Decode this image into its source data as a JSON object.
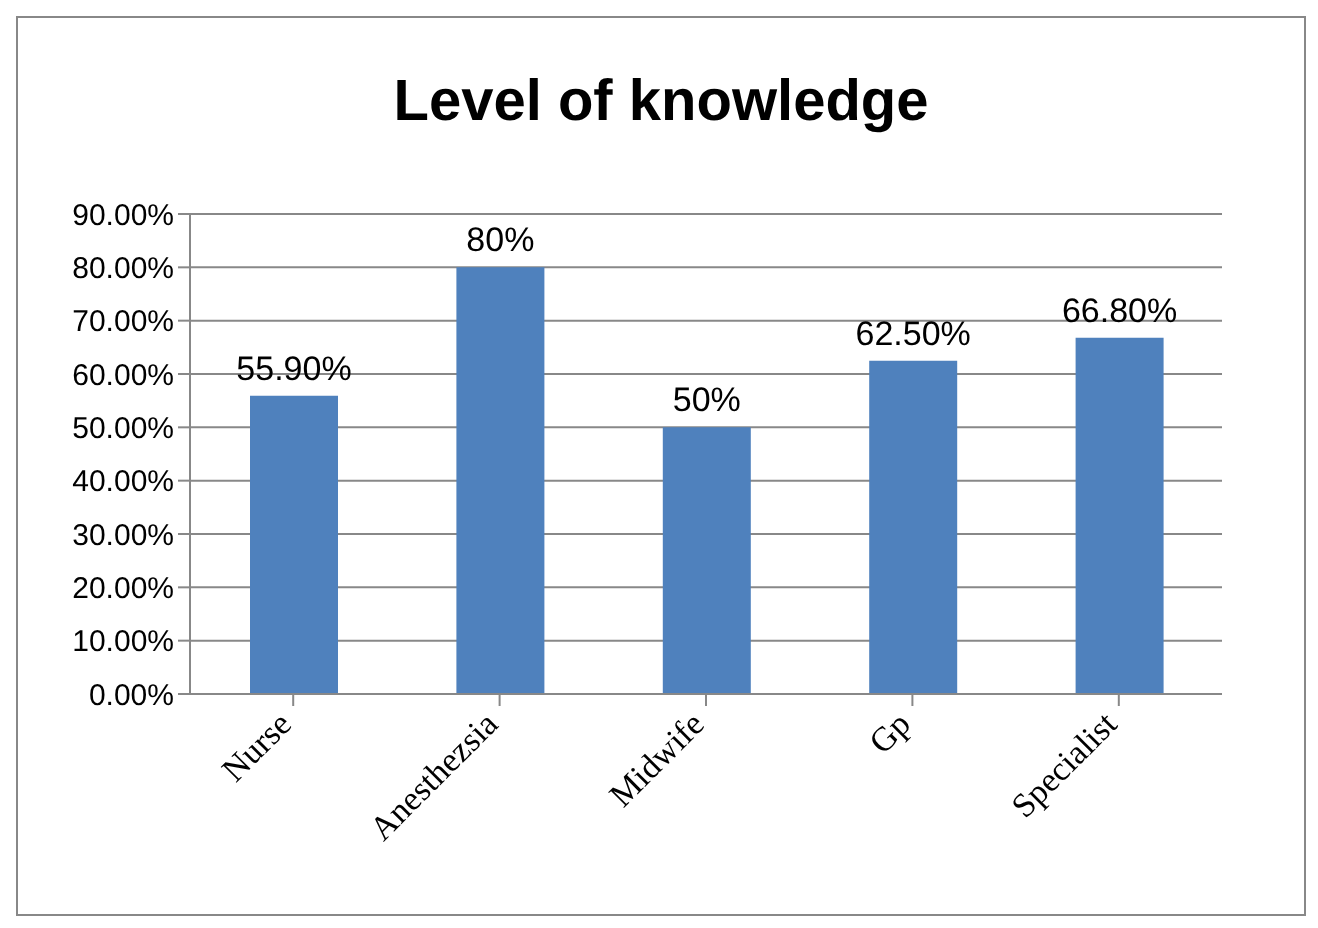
{
  "chart_data": {
    "type": "bar",
    "title": "Level of knowledge",
    "categories": [
      "Nurse",
      "Anesthezsia",
      "Midwife",
      "Gp",
      "Specialist"
    ],
    "values": [
      55.9,
      80,
      50,
      62.5,
      66.8
    ],
    "value_labels": [
      "55.90%",
      "80%",
      "50%",
      "62.50%",
      "66.80%"
    ],
    "color": "#4f81bd",
    "ylim": [
      0,
      90
    ],
    "yticks": [
      {
        "value": 0,
        "label": "0.00%"
      },
      {
        "value": 10,
        "label": "10.00%"
      },
      {
        "value": 20,
        "label": "20.00%"
      },
      {
        "value": 30,
        "label": "30.00%"
      },
      {
        "value": 40,
        "label": "40.00%"
      },
      {
        "value": 50,
        "label": "50.00%"
      },
      {
        "value": 60,
        "label": "60.00%"
      },
      {
        "value": 70,
        "label": "70.00%"
      },
      {
        "value": 80,
        "label": "80.00%"
      },
      {
        "value": 90,
        "label": "90.00%"
      }
    ],
    "grid": "y"
  }
}
